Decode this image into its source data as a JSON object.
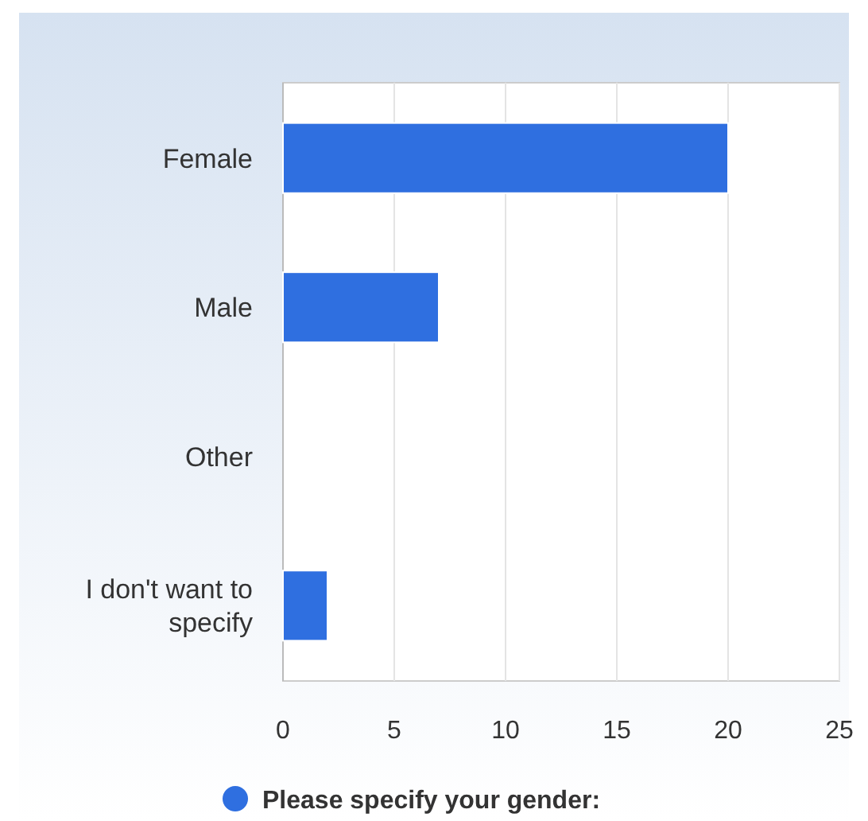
{
  "chart_data": {
    "type": "bar",
    "orientation": "horizontal",
    "categories": [
      "Female",
      "Male",
      "Other",
      "I don't want to specify"
    ],
    "series": [
      {
        "name": "Please specify your gender:",
        "color": "#2f6fe0",
        "values": [
          20,
          7,
          0,
          2
        ]
      }
    ],
    "xlim": [
      0,
      25
    ],
    "xticks": [
      0,
      5,
      10,
      15,
      20,
      25
    ],
    "grid": "x",
    "legend": "bottom"
  }
}
